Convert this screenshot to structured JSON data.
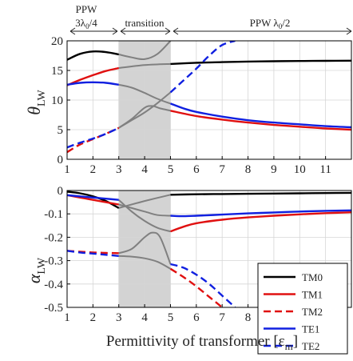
{
  "chart_data": [
    {
      "type": "line",
      "ylabel_main": "θ",
      "ylabel_sub": "LW",
      "xlim": [
        1,
        12
      ],
      "ylim": [
        0,
        20
      ],
      "xticks": [
        1,
        2,
        3,
        4,
        5,
        6,
        7,
        8,
        9,
        10,
        11
      ],
      "yticks": [
        0,
        5,
        10,
        15,
        20
      ],
      "grid": true,
      "shaded_region": [
        3,
        5
      ],
      "region_labels": {
        "left_line1": "PPW",
        "left_line2_main": "3λ",
        "left_line2_sub": "0",
        "left_line2_tail": "/4",
        "middle": "transition",
        "right_main": "PPW  λ",
        "right_sub": "0",
        "right_tail": "/2"
      },
      "series": [
        {
          "name": "TM0",
          "color": "#000000",
          "dash": false,
          "x": [
            1,
            1.5,
            2,
            2.5,
            3
          ],
          "y": [
            16.8,
            17.8,
            18.2,
            18.1,
            17.7
          ]
        },
        {
          "name": "TM0",
          "color": "#000000",
          "dash": false,
          "x": [
            5,
            6,
            7,
            8,
            9,
            10,
            11,
            12
          ],
          "y": [
            16.1,
            16.3,
            16.4,
            16.5,
            16.55,
            16.6,
            16.62,
            16.65
          ]
        },
        {
          "name": "TM1",
          "color": "#e01010",
          "dash": false,
          "x": [
            1,
            1.5,
            2,
            2.5,
            3
          ],
          "y": [
            12.5,
            13.4,
            14.2,
            14.9,
            15.4
          ]
        },
        {
          "name": "TM1",
          "color": "#e01010",
          "dash": false,
          "x": [
            5,
            6,
            7,
            8,
            9,
            10,
            11,
            12
          ],
          "y": [
            8.2,
            7.3,
            6.7,
            6.2,
            5.8,
            5.5,
            5.2,
            5.0
          ]
        },
        {
          "name": "TM2",
          "color": "#e01010",
          "dash": true,
          "x": [
            1,
            1.5,
            2,
            2.5,
            3
          ],
          "y": [
            1.2,
            2.5,
            3.4,
            4.3,
            5.3
          ]
        },
        {
          "name": "TE1",
          "color": "#1020e0",
          "dash": false,
          "x": [
            1,
            1.5,
            2,
            2.5,
            3
          ],
          "y": [
            12.6,
            12.9,
            13.0,
            12.9,
            12.6
          ]
        },
        {
          "name": "TE1",
          "color": "#1020e0",
          "dash": false,
          "x": [
            5,
            5.5,
            6,
            7,
            8,
            9,
            10,
            11,
            12
          ],
          "y": [
            9.4,
            8.6,
            8.0,
            7.2,
            6.6,
            6.2,
            5.9,
            5.6,
            5.4
          ]
        },
        {
          "name": "TE2",
          "color": "#1020e0",
          "dash": true,
          "x": [
            1,
            1.5,
            2,
            2.5,
            3
          ],
          "y": [
            2.0,
            2.8,
            3.5,
            4.3,
            5.3
          ]
        },
        {
          "name": "TE2",
          "color": "#1020e0",
          "dash": true,
          "x": [
            5,
            5.5,
            6,
            6.5,
            7,
            7.5
          ],
          "y": [
            11.3,
            13.3,
            15.3,
            17.5,
            19.3,
            20.0
          ]
        },
        {
          "name": "transition",
          "color": "#808080",
          "dash": false,
          "x": [
            3,
            3.5,
            4,
            4.5,
            5
          ],
          "y": [
            17.7,
            17.2,
            16.9,
            17.8,
            20.0
          ]
        },
        {
          "name": "transition",
          "color": "#808080",
          "dash": false,
          "x": [
            3,
            4,
            5
          ],
          "y": [
            15.4,
            15.9,
            16.1
          ]
        },
        {
          "name": "transition",
          "color": "#808080",
          "dash": false,
          "x": [
            3,
            3.5,
            4,
            4.5,
            5
          ],
          "y": [
            12.6,
            12.1,
            11.2,
            10.2,
            9.4
          ]
        },
        {
          "name": "transition",
          "color": "#808080",
          "dash": false,
          "x": [
            3,
            3.5,
            4,
            4.5,
            5
          ],
          "y": [
            5.3,
            6.6,
            7.9,
            9.5,
            11.3
          ]
        },
        {
          "name": "transition",
          "color": "#808080",
          "dash": false,
          "x": [
            3,
            3.5,
            4,
            4.3,
            4.6,
            5
          ],
          "y": [
            5.3,
            6.8,
            8.7,
            9.0,
            8.6,
            8.2
          ]
        }
      ]
    },
    {
      "type": "line",
      "ylabel_main": "α",
      "ylabel_sub": "LW",
      "xlabel_main": "Permittivity of transformer [ε",
      "xlabel_sub": "m",
      "xlabel_tail": "]",
      "xlim": [
        1,
        12
      ],
      "ylim": [
        -0.5,
        0
      ],
      "xticks": [
        1,
        2,
        3,
        4,
        5,
        6,
        7,
        8,
        9,
        10,
        11
      ],
      "yticks": [
        0,
        -0.1,
        -0.2,
        -0.3,
        -0.4,
        -0.5
      ],
      "ytick_labels": [
        "0",
        "-0.1",
        "-0.2",
        "-0.3",
        "-0.4",
        "-0.5"
      ],
      "grid": true,
      "shaded_region": [
        3,
        5
      ],
      "legend": {
        "position": "right",
        "entries": [
          {
            "label": "TM0",
            "color": "#000000",
            "dash": false
          },
          {
            "label": "TM1",
            "color": "#e01010",
            "dash": false
          },
          {
            "label": "TM2",
            "color": "#e01010",
            "dash": true
          },
          {
            "label": "TE1",
            "color": "#1020e0",
            "dash": false
          },
          {
            "label": "TE2",
            "color": "#1020e0",
            "dash": true
          }
        ]
      },
      "series": [
        {
          "name": "TM0",
          "color": "#000000",
          "dash": false,
          "x": [
            1,
            1.5,
            2,
            2.5,
            3
          ],
          "y": [
            -0.005,
            -0.012,
            -0.025,
            -0.045,
            -0.075
          ]
        },
        {
          "name": "TM0",
          "color": "#000000",
          "dash": false,
          "x": [
            5,
            6,
            7,
            8,
            9,
            10,
            11,
            12
          ],
          "y": [
            -0.018,
            -0.016,
            -0.015,
            -0.014,
            -0.013,
            -0.012,
            -0.011,
            -0.01
          ]
        },
        {
          "name": "TM1",
          "color": "#e01010",
          "dash": false,
          "x": [
            1,
            1.5,
            2,
            2.5,
            3
          ],
          "y": [
            -0.02,
            -0.03,
            -0.04,
            -0.05,
            -0.06
          ]
        },
        {
          "name": "TM1",
          "color": "#e01010",
          "dash": false,
          "x": [
            5,
            5.5,
            6,
            7,
            8,
            9,
            10,
            11,
            12
          ],
          "y": [
            -0.175,
            -0.155,
            -0.14,
            -0.125,
            -0.115,
            -0.108,
            -0.102,
            -0.097,
            -0.093
          ]
        },
        {
          "name": "TM2",
          "color": "#e01010",
          "dash": true,
          "x": [
            1,
            1.5,
            2,
            2.5,
            3
          ],
          "y": [
            -0.258,
            -0.262,
            -0.265,
            -0.267,
            -0.268
          ]
        },
        {
          "name": "TM2",
          "color": "#e01010",
          "dash": true,
          "x": [
            5,
            5.5,
            6,
            6.5,
            7
          ],
          "y": [
            -0.335,
            -0.37,
            -0.41,
            -0.455,
            -0.5
          ]
        },
        {
          "name": "TE1",
          "color": "#1020e0",
          "dash": false,
          "x": [
            1,
            1.5,
            2,
            2.5,
            3
          ],
          "y": [
            -0.02,
            -0.025,
            -0.03,
            -0.035,
            -0.04
          ]
        },
        {
          "name": "TE1",
          "color": "#1020e0",
          "dash": false,
          "x": [
            5,
            5.5,
            6,
            7,
            8,
            9,
            10,
            11,
            12
          ],
          "y": [
            -0.108,
            -0.11,
            -0.108,
            -0.103,
            -0.098,
            -0.094,
            -0.09,
            -0.087,
            -0.085
          ]
        },
        {
          "name": "TE2",
          "color": "#1020e0",
          "dash": true,
          "x": [
            1,
            1.5,
            2,
            2.5,
            3
          ],
          "y": [
            -0.258,
            -0.265,
            -0.27,
            -0.275,
            -0.28
          ]
        },
        {
          "name": "TE2",
          "color": "#1020e0",
          "dash": true,
          "x": [
            5,
            5.5,
            6,
            6.5,
            7,
            7.5
          ],
          "y": [
            -0.315,
            -0.33,
            -0.36,
            -0.4,
            -0.45,
            -0.5
          ]
        },
        {
          "name": "transition",
          "color": "#808080",
          "dash": false,
          "x": [
            3,
            3.5,
            4,
            4.5,
            5
          ],
          "y": [
            -0.06,
            -0.075,
            -0.09,
            -0.105,
            -0.108
          ]
        },
        {
          "name": "transition",
          "color": "#808080",
          "dash": false,
          "x": [
            3,
            3.5,
            4,
            4.5,
            5
          ],
          "y": [
            -0.04,
            -0.09,
            -0.13,
            -0.16,
            -0.175
          ]
        },
        {
          "name": "transition",
          "color": "#808080",
          "dash": false,
          "x": [
            3,
            3.5,
            4,
            4.3,
            4.6,
            5
          ],
          "y": [
            -0.268,
            -0.25,
            -0.2,
            -0.18,
            -0.2,
            -0.315
          ]
        },
        {
          "name": "transition",
          "color": "#808080",
          "dash": false,
          "x": [
            3,
            3.5,
            4,
            4.5,
            5
          ],
          "y": [
            -0.28,
            -0.283,
            -0.29,
            -0.305,
            -0.335
          ]
        },
        {
          "name": "transition",
          "color": "#808080",
          "dash": false,
          "x": [
            3,
            4,
            5
          ],
          "y": [
            -0.075,
            -0.045,
            -0.018
          ]
        }
      ]
    }
  ]
}
